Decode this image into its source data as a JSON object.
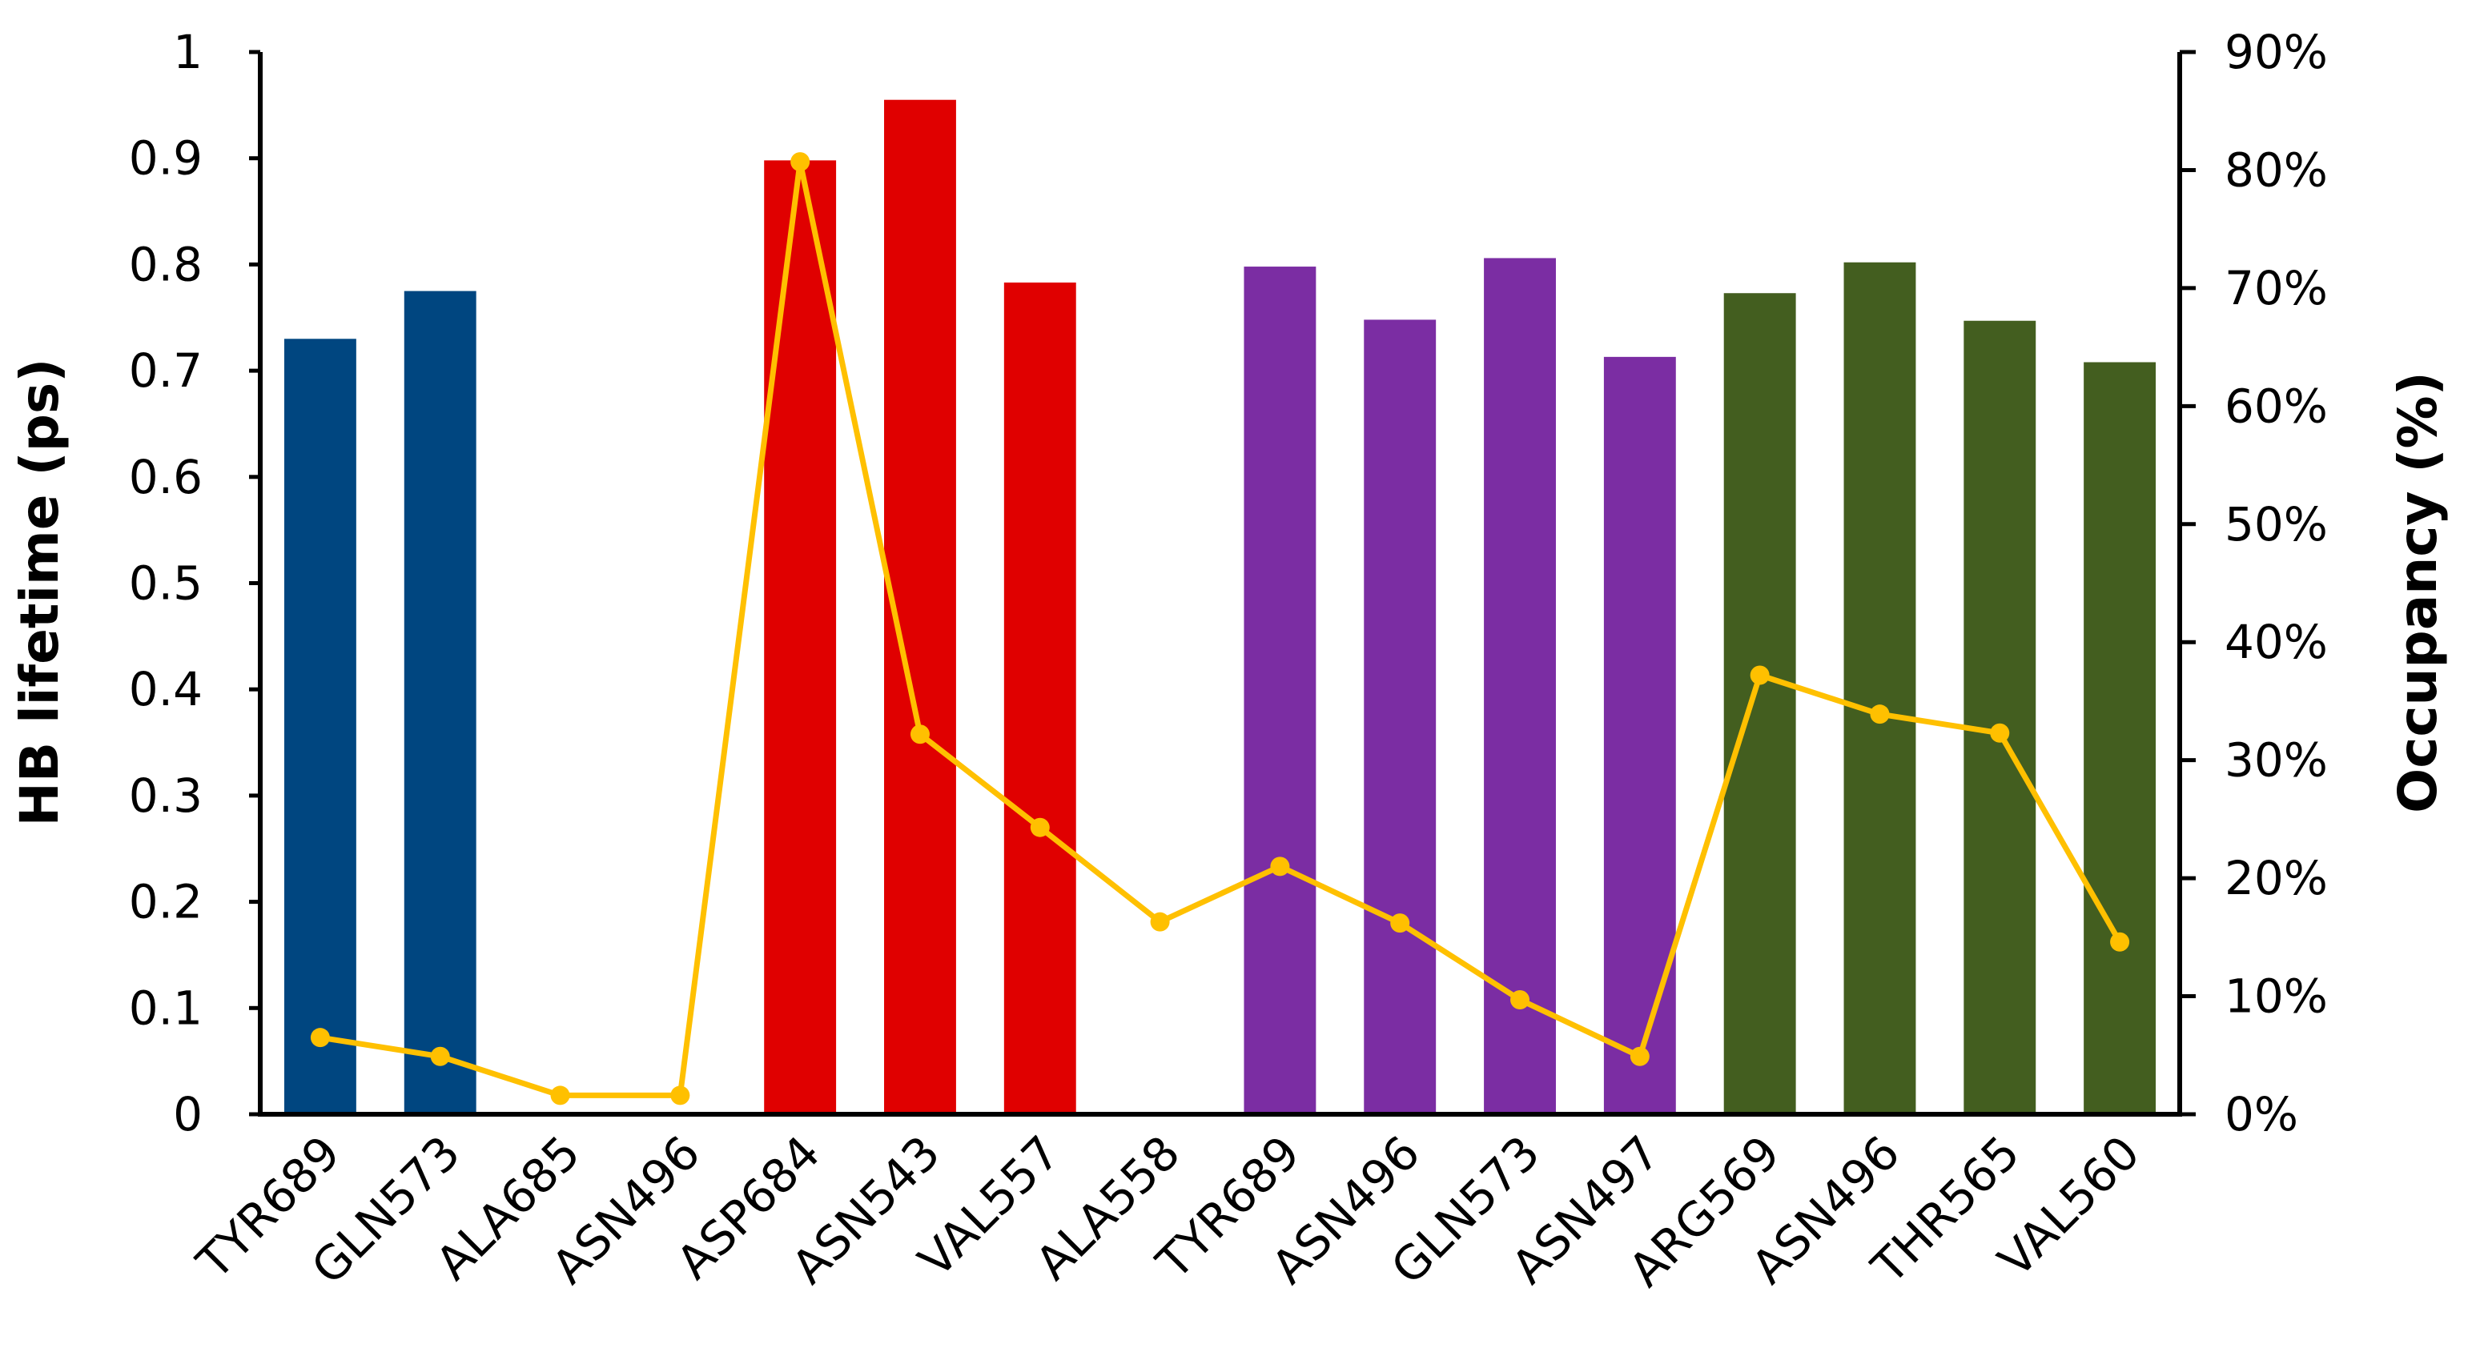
{
  "chart_data": {
    "type": "bar",
    "combo": "bar + line (secondary axis)",
    "categories": [
      "TYR689",
      "GLN573",
      "ALA685",
      "ASN496",
      "ASP684",
      "ASN543",
      "VAL557",
      "ALA558",
      "TYR689",
      "ASN496",
      "GLN573",
      "ASN497",
      "ARG569",
      "ASN496",
      "THR565",
      "VAL560"
    ],
    "bar_colors": [
      "#004680",
      "#004680",
      "#004680",
      "#004680",
      "#e00000",
      "#e00000",
      "#e00000",
      "#e00000",
      "#7b2da3",
      "#7b2da3",
      "#7b2da3",
      "#7b2da3",
      "#435e1f",
      "#435e1f",
      "#435e1f",
      "#435e1f"
    ],
    "series": [
      {
        "name": "",
        "axis": "left",
        "kind": "bar",
        "values": [
          0.73,
          0.775,
          0,
          0,
          0.898,
          0.955,
          0.783,
          0,
          0.798,
          0.748,
          0.806,
          0.713,
          0.773,
          0.802,
          0.747,
          0.708
        ]
      },
      {
        "name": "",
        "axis": "right",
        "kind": "line",
        "color": "#ffc000",
        "values": [
          6.5,
          4.9,
          1.6,
          1.6,
          80.7,
          32.2,
          24.3,
          16.3,
          21.0,
          16.2,
          9.7,
          4.9,
          37.2,
          33.9,
          32.3,
          14.6
        ]
      }
    ],
    "ylabel": "HB lifetime (ps)",
    "ylim": [
      0,
      1
    ],
    "yticks": [
      "0",
      "0.1",
      "0.2",
      "0.3",
      "0.4",
      "0.5",
      "0.6",
      "0.7",
      "0.8",
      "0.9",
      "1"
    ],
    "y2label": "Occupancy (%)",
    "y2lim": [
      0,
      90
    ],
    "y2ticks": [
      "0%",
      "10%",
      "20%",
      "30%",
      "40%",
      "50%",
      "60%",
      "70%",
      "80%",
      "90%"
    ],
    "xlabel": "",
    "grid": false,
    "legend": "none"
  }
}
